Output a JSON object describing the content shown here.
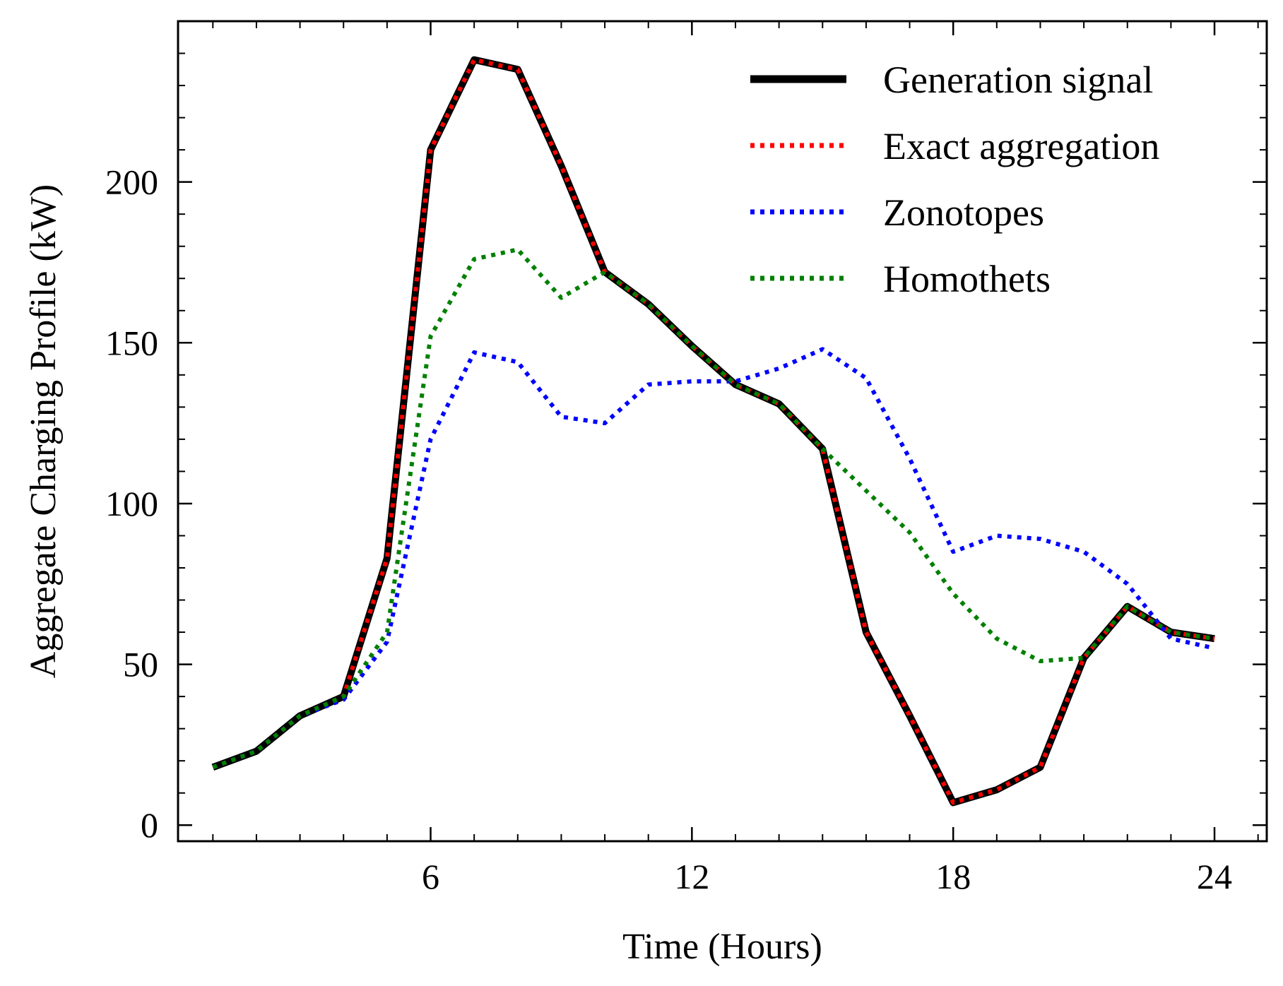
{
  "chart_data": {
    "type": "line",
    "title": "",
    "xlabel": "Time (Hours)",
    "ylabel": "Aggregate Charging Profile (kW)",
    "xlim": [
      0.2,
      25.2
    ],
    "ylim": [
      -5,
      250
    ],
    "xticks": [
      6,
      12,
      18,
      24
    ],
    "xtick_labels": [
      "6",
      "12",
      "18",
      "24"
    ],
    "yticks": [
      0,
      50,
      100,
      150,
      200
    ],
    "ytick_labels": [
      "0",
      "50",
      "100",
      "150",
      "200"
    ],
    "grid": false,
    "legend_position": "top-right",
    "x": [
      1,
      2,
      3,
      4,
      5,
      6,
      7,
      8,
      9,
      10,
      11,
      12,
      13,
      14,
      15,
      16,
      17,
      18,
      19,
      20,
      21,
      22,
      23,
      24
    ],
    "series": [
      {
        "name": "Generation signal",
        "color": "#000000",
        "style": "solid",
        "values": [
          18,
          23,
          34,
          40,
          83,
          210,
          238,
          235,
          205,
          172,
          162,
          149,
          137,
          131,
          117,
          60,
          34,
          7,
          11,
          18,
          52,
          68,
          60,
          58
        ]
      },
      {
        "name": "Exact aggregation",
        "color": "#ff0000",
        "style": "dotted",
        "values": [
          18,
          23,
          34,
          40,
          83,
          210,
          238,
          235,
          205,
          172,
          162,
          149,
          137,
          131,
          117,
          60,
          34,
          7,
          11,
          18,
          52,
          68,
          60,
          58
        ]
      },
      {
        "name": "Zonotopes",
        "color": "#0000ff",
        "style": "dotted",
        "values": [
          18,
          23,
          34,
          39,
          57,
          120,
          147,
          144,
          127,
          125,
          137,
          138,
          138,
          142,
          148,
          139,
          114,
          85,
          90,
          89,
          85,
          75,
          58,
          55
        ]
      },
      {
        "name": "Homothets",
        "color": "#008000",
        "style": "dotted",
        "values": [
          18,
          23,
          34,
          40,
          60,
          152,
          176,
          179,
          164,
          172,
          162,
          149,
          137,
          131,
          117,
          104,
          91,
          72,
          58,
          51,
          52,
          68,
          60,
          58
        ]
      }
    ]
  }
}
